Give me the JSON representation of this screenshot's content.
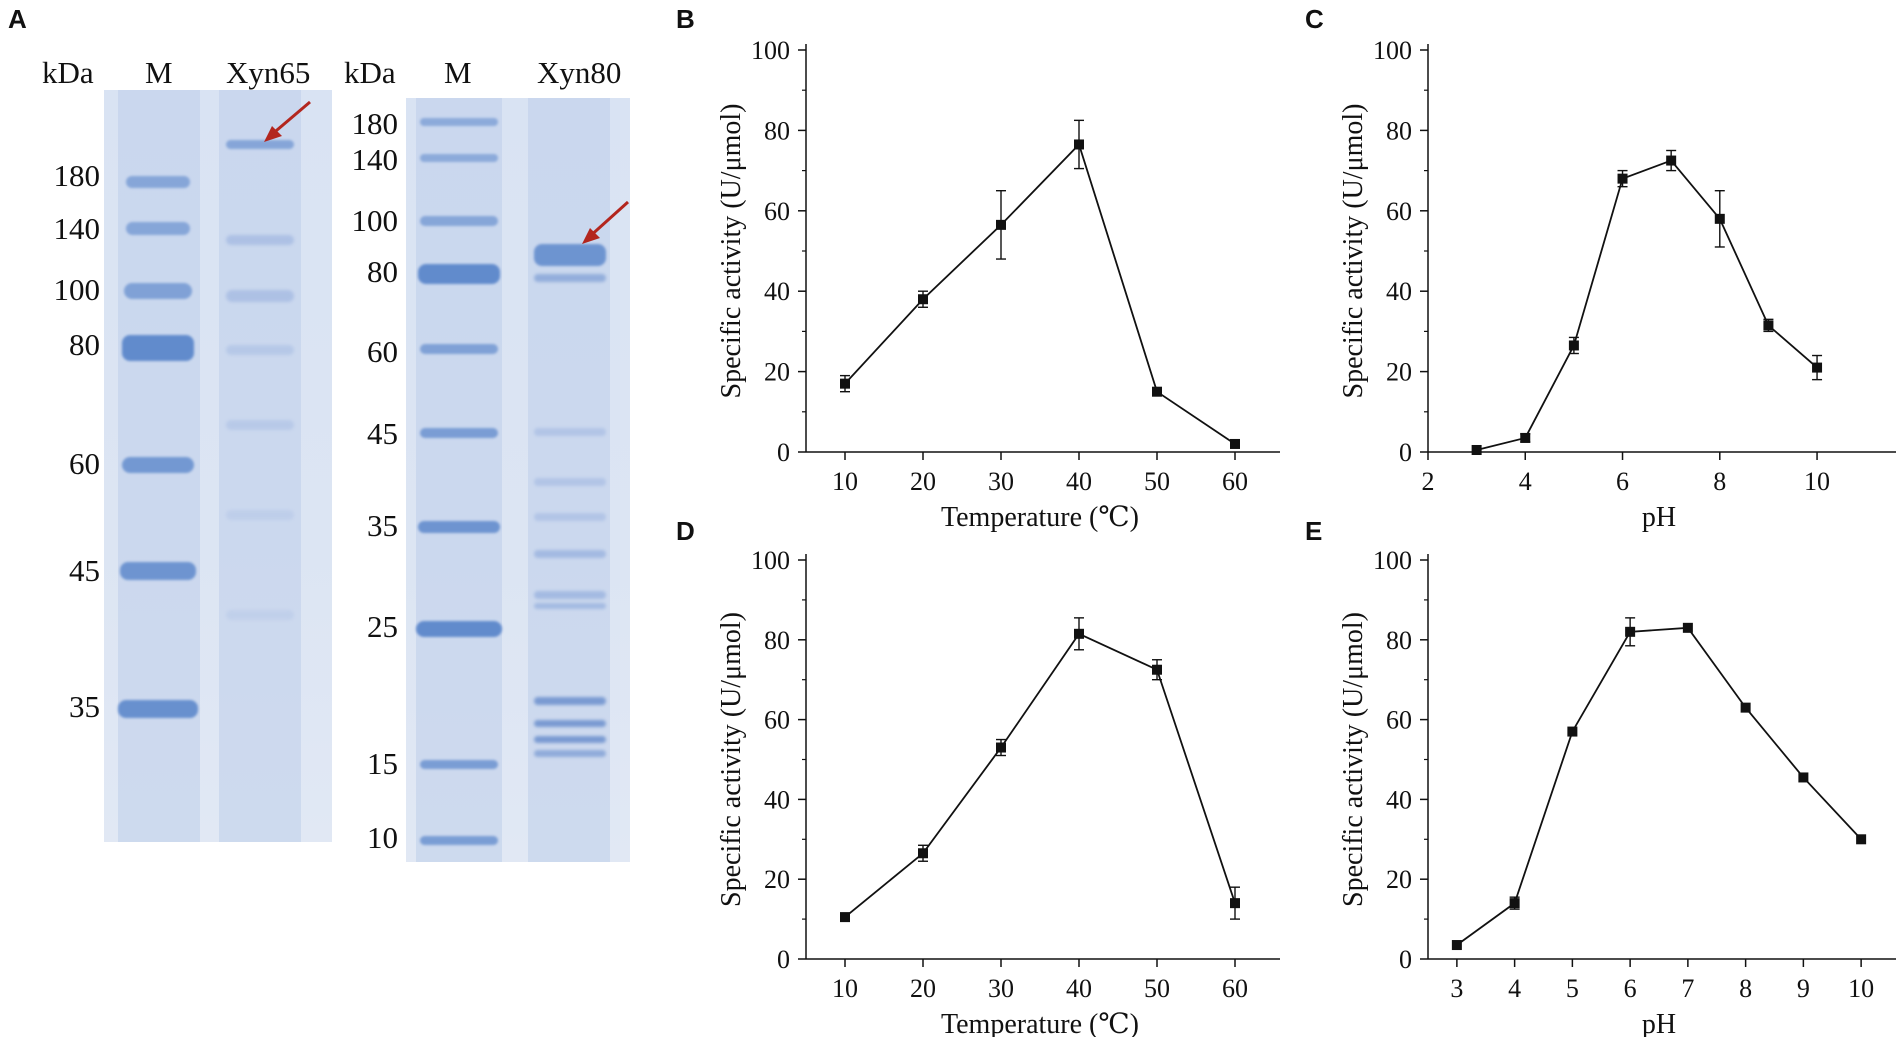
{
  "panel_letters": {
    "a": "A",
    "b": "B",
    "c": "C",
    "d": "D",
    "e": "E"
  },
  "gel_left": {
    "kda_label": "kDa",
    "lane_m": "M",
    "lane_sample": "Xyn65",
    "markers": [
      "180",
      "140",
      "100",
      "80",
      "60",
      "45",
      "35"
    ]
  },
  "gel_right": {
    "kda_label": "kDa",
    "lane_m": "M",
    "lane_sample": "Xyn80",
    "markers": [
      "180",
      "140",
      "100",
      "80",
      "60",
      "45",
      "35",
      "25",
      "15",
      "10"
    ]
  },
  "colors": {
    "arrow": "#b3261e",
    "band": "#4f7ec7",
    "line": "#111111"
  },
  "chart_data": [
    {
      "id": "B",
      "type": "line",
      "xlabel": "Temperature (℃)",
      "ylabel": "Specific activity (U/μmol)",
      "x": [
        10,
        20,
        30,
        40,
        50,
        60
      ],
      "y": [
        17,
        38,
        56.5,
        76.5,
        15,
        2
      ],
      "err": [
        2,
        2,
        8.5,
        6,
        0,
        0
      ],
      "xlim": [
        5,
        65
      ],
      "ylim": [
        0,
        100
      ],
      "xticks": [
        10,
        20,
        30,
        40,
        50,
        60
      ],
      "yticks": [
        0,
        20,
        40,
        60,
        80,
        100
      ]
    },
    {
      "id": "C",
      "type": "line",
      "xlabel": "pH",
      "ylabel": "Specific activity (U/μmol)",
      "x": [
        3,
        4,
        5,
        6,
        7,
        8,
        9,
        10
      ],
      "y": [
        0.5,
        3.5,
        26.5,
        68,
        72.5,
        58,
        31.5,
        21
      ],
      "err": [
        0,
        1,
        2,
        2,
        2.5,
        7,
        1.5,
        3
      ],
      "xlim": [
        2,
        11.5
      ],
      "ylim": [
        0,
        100
      ],
      "xticks": [
        2,
        4,
        6,
        8,
        10
      ],
      "yticks": [
        0,
        20,
        40,
        60,
        80,
        100
      ]
    },
    {
      "id": "D",
      "type": "line",
      "xlabel": "Temperature (℃)",
      "ylabel": "Specific activity (U/μmol)",
      "x": [
        10,
        20,
        30,
        40,
        50,
        60
      ],
      "y": [
        10.5,
        26.5,
        53,
        81.5,
        72.5,
        14
      ],
      "err": [
        0,
        2,
        2,
        4,
        2.5,
        4
      ],
      "xlim": [
        5,
        65
      ],
      "ylim": [
        0,
        100
      ],
      "xticks": [
        10,
        20,
        30,
        40,
        50,
        60
      ],
      "yticks": [
        0,
        20,
        40,
        60,
        80,
        100
      ]
    },
    {
      "id": "E",
      "type": "line",
      "xlabel": "pH",
      "ylabel": "Specific activity (U/μmol)",
      "x": [
        3,
        4,
        5,
        6,
        7,
        8,
        9,
        10
      ],
      "y": [
        3.5,
        14,
        57,
        82,
        83,
        63,
        45.5,
        30
      ],
      "err": [
        0,
        1.5,
        0,
        3.5,
        0,
        0,
        0,
        0
      ],
      "xlim": [
        2.5,
        10.5
      ],
      "ylim": [
        0,
        100
      ],
      "xticks": [
        3,
        4,
        5,
        6,
        7,
        8,
        9,
        10
      ],
      "yticks": [
        0,
        20,
        40,
        60,
        80,
        100
      ]
    }
  ]
}
